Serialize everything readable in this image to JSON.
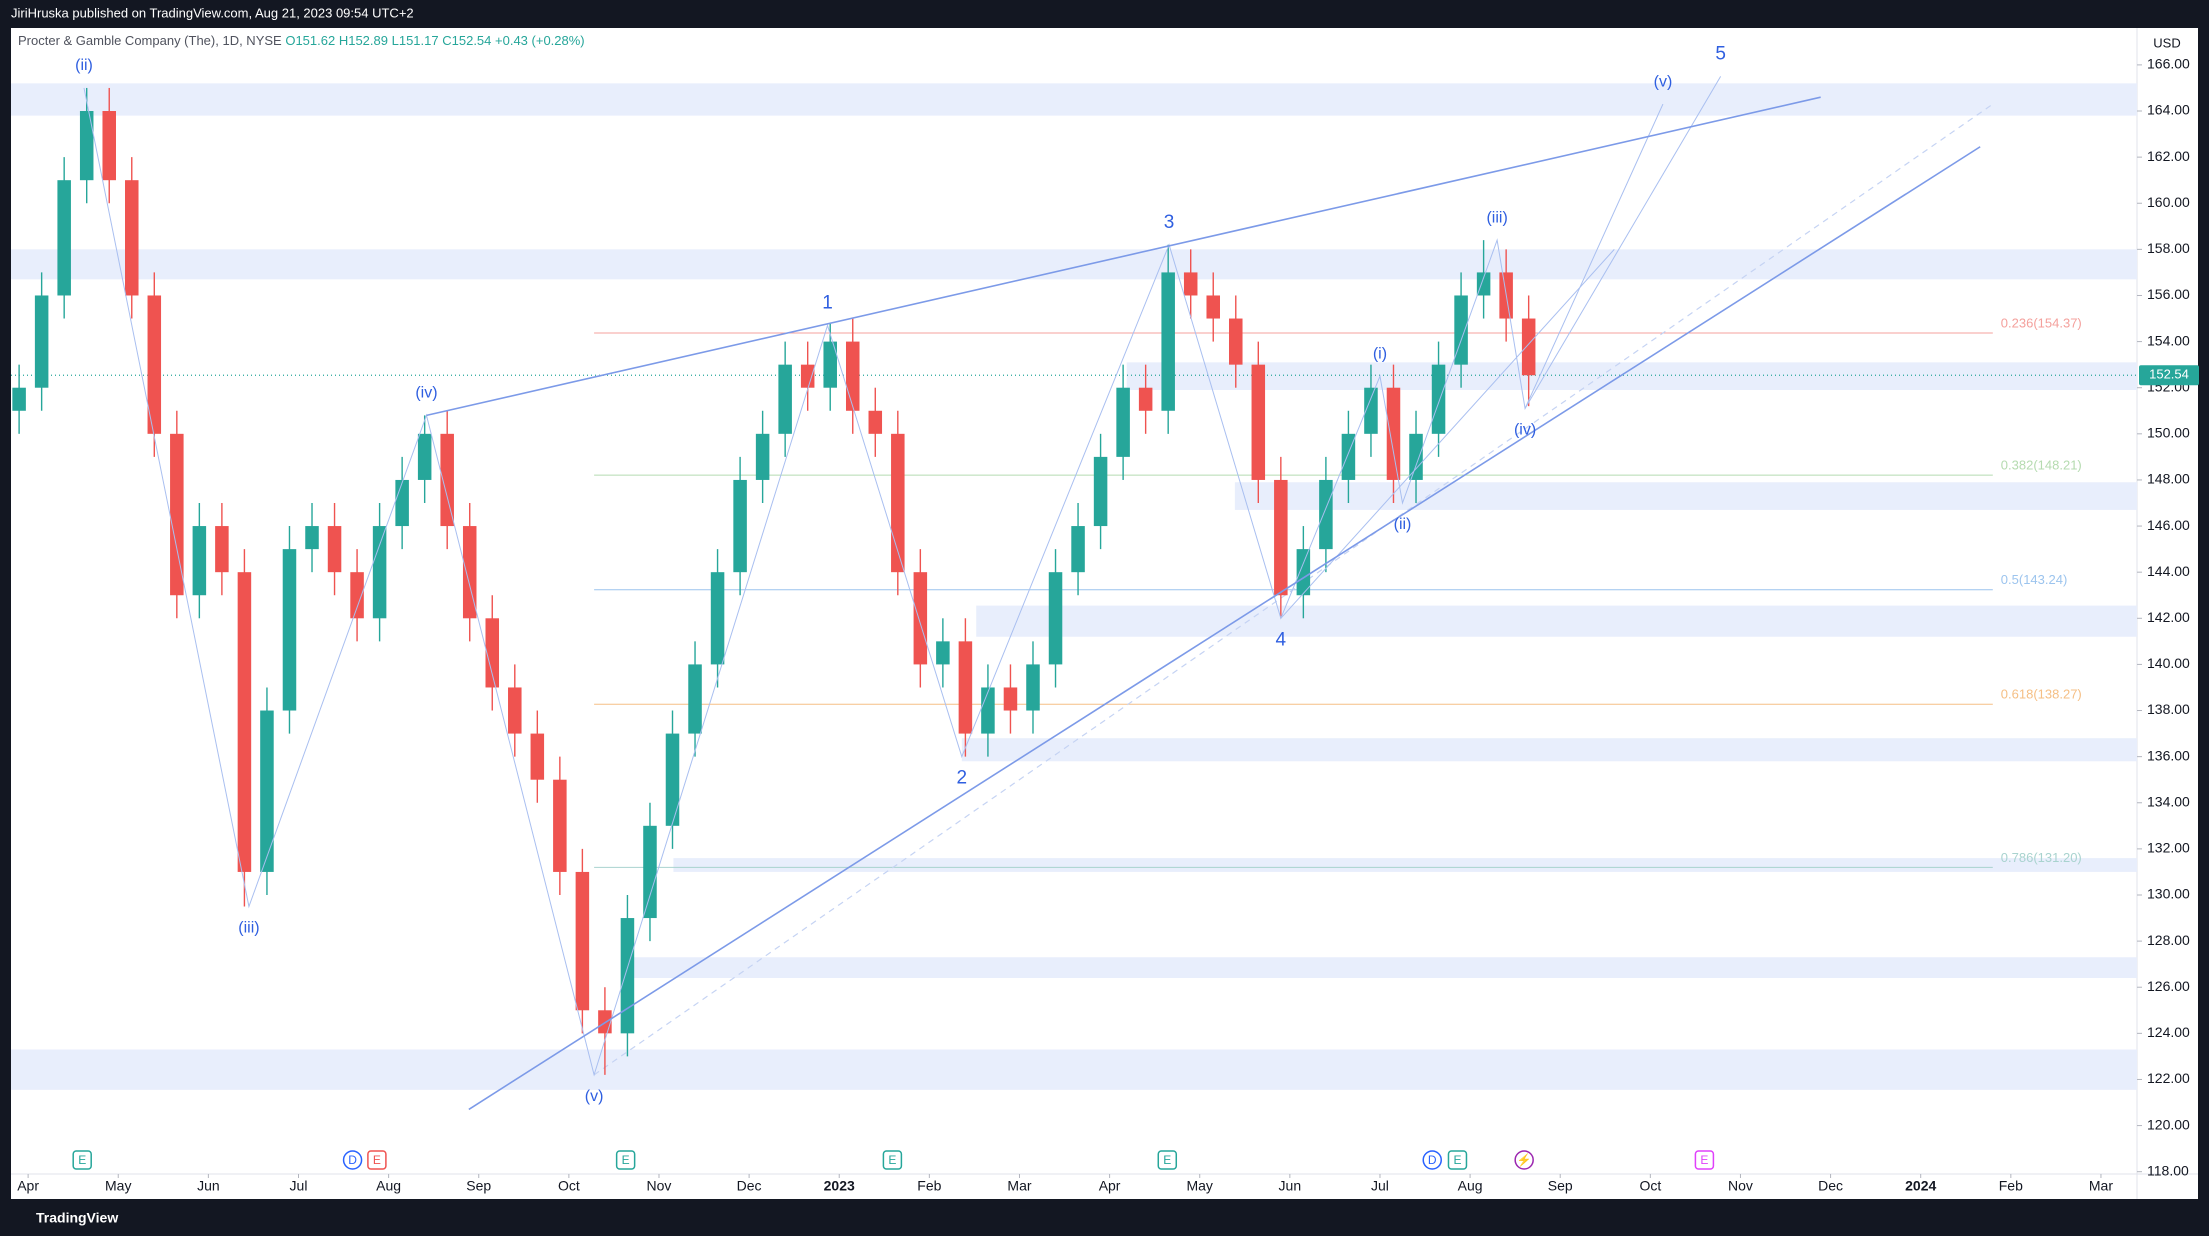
{
  "header": "JiriHruska published on TradingView.com, Aug 21, 2023 09:54 UTC+2",
  "footer": "TradingView",
  "chart_data": {
    "type": "candlestick",
    "symbol": "Procter & Gamble Company (The), 1D, NYSE",
    "ohlc_labels": [
      "O151.62",
      "H152.89",
      "L151.17",
      "C152.54",
      "+0.43 (+0.28%)"
    ],
    "currency": "USD",
    "last_price": 152.54,
    "up_color": "#26a69a",
    "down_color": "#ef5350",
    "xlim": [
      -0.19,
      23.4
    ],
    "xticks": [
      {
        "value": 0,
        "label": "Apr"
      },
      {
        "value": 1,
        "label": "May"
      },
      {
        "value": 2,
        "label": "Jun"
      },
      {
        "value": 3,
        "label": "Jul"
      },
      {
        "value": 4,
        "label": "Aug"
      },
      {
        "value": 5,
        "label": "Sep"
      },
      {
        "value": 6,
        "label": "Oct"
      },
      {
        "value": 7,
        "label": "Nov"
      },
      {
        "value": 8,
        "label": "Dec"
      },
      {
        "value": 9,
        "label": "2023"
      },
      {
        "value": 10,
        "label": "Feb"
      },
      {
        "value": 11,
        "label": "Mar"
      },
      {
        "value": 12,
        "label": "Apr"
      },
      {
        "value": 13,
        "label": "May"
      },
      {
        "value": 14,
        "label": "Jun"
      },
      {
        "value": 15,
        "label": "Jul"
      },
      {
        "value": 16,
        "label": "Aug"
      },
      {
        "value": 17,
        "label": "Sep"
      },
      {
        "value": 18,
        "label": "Oct"
      },
      {
        "value": 19,
        "label": "Nov"
      },
      {
        "value": 20,
        "label": "Dec"
      },
      {
        "value": 21,
        "label": "2024"
      },
      {
        "value": 22,
        "label": "Feb"
      },
      {
        "value": 23,
        "label": "Mar"
      }
    ],
    "ylim": [
      117.9,
      167.6
    ],
    "yticks": [
      {
        "value": 118,
        "label": "118.00"
      },
      {
        "value": 120,
        "label": "120.00"
      },
      {
        "value": 122,
        "label": "122.00"
      },
      {
        "value": 124,
        "label": "124.00"
      },
      {
        "value": 126,
        "label": "126.00"
      },
      {
        "value": 128,
        "label": "128.00"
      },
      {
        "value": 130,
        "label": "130.00"
      },
      {
        "value": 132,
        "label": "132.00"
      },
      {
        "value": 134,
        "label": "134.00"
      },
      {
        "value": 136,
        "label": "136.00"
      },
      {
        "value": 138,
        "label": "138.00"
      },
      {
        "value": 140,
        "label": "140.00"
      },
      {
        "value": 142,
        "label": "142.00"
      },
      {
        "value": 144,
        "label": "144.00"
      },
      {
        "value": 146,
        "label": "146.00"
      },
      {
        "value": 148,
        "label": "148.00"
      },
      {
        "value": 150,
        "label": "150.00"
      },
      {
        "value": 152,
        "label": "152.00"
      },
      {
        "value": 154,
        "label": "154.00"
      },
      {
        "value": 156,
        "label": "156.00"
      },
      {
        "value": 158,
        "label": "158.00"
      },
      {
        "value": 160,
        "label": "160.00"
      },
      {
        "value": 162,
        "label": "162.00"
      },
      {
        "value": 164,
        "label": "164.00"
      },
      {
        "value": 166,
        "label": "166.00"
      }
    ],
    "grid": false,
    "x": [
      -0.1,
      0.15,
      0.4,
      0.65,
      0.9,
      1.15,
      1.4,
      1.65,
      1.9,
      2.15,
      2.4,
      2.65,
      2.9,
      3.15,
      3.4,
      3.65,
      3.9,
      4.15,
      4.4,
      4.65,
      4.9,
      5.15,
      5.4,
      5.65,
      5.9,
      6.15,
      6.4,
      6.65,
      6.9,
      7.15,
      7.4,
      7.65,
      7.9,
      8.15,
      8.4,
      8.65,
      8.9,
      9.15,
      9.4,
      9.65,
      9.9,
      10.15,
      10.4,
      10.65,
      10.9,
      11.15,
      11.4,
      11.65,
      11.9,
      12.15,
      12.4,
      12.65,
      12.9,
      13.15,
      13.4,
      13.65,
      13.9,
      14.15,
      14.4,
      14.65,
      14.9,
      15.15,
      15.4,
      15.65,
      15.9,
      16.15,
      16.4,
      16.65
    ],
    "open": [
      151,
      152,
      156,
      161,
      164,
      161,
      156,
      150,
      143,
      146,
      144,
      131,
      138,
      145,
      146,
      144,
      142,
      146,
      148,
      150,
      146,
      142,
      139,
      137,
      135,
      131,
      125,
      124,
      129,
      133,
      137,
      140,
      144,
      148,
      150,
      153,
      152,
      154,
      151,
      150,
      144,
      140,
      141,
      137,
      139,
      138,
      140,
      144,
      146,
      149,
      152,
      151,
      157,
      156,
      155,
      153,
      148,
      143,
      145,
      148,
      150,
      152,
      148,
      150,
      153,
      156,
      157,
      155
    ],
    "high": [
      153,
      157,
      162,
      165,
      165,
      162,
      157,
      151,
      147,
      147,
      145,
      139,
      146,
      147,
      147,
      145,
      147,
      149,
      150.8,
      151,
      147,
      143,
      140,
      138,
      136,
      132,
      126,
      130,
      134,
      138,
      141,
      145,
      149,
      151,
      154,
      154,
      154.8,
      155,
      152,
      151,
      145,
      142,
      142,
      140,
      140,
      141,
      145,
      147,
      150,
      153,
      153,
      158.2,
      158,
      157,
      156,
      154,
      149,
      146,
      149,
      151,
      153,
      153,
      151,
      154,
      157,
      158.4,
      158,
      156
    ],
    "low": [
      150,
      151,
      155,
      160,
      160,
      155,
      149,
      142,
      142,
      143,
      129.5,
      130,
      137,
      144,
      143,
      141,
      141,
      145,
      147,
      145,
      141,
      138,
      136,
      134,
      130,
      124,
      122.2,
      123,
      128,
      132,
      136,
      139,
      143,
      147,
      149,
      151,
      151,
      150,
      149,
      143,
      139,
      139,
      136,
      136,
      137,
      137,
      139,
      143,
      145,
      148,
      150,
      150,
      155,
      154,
      152,
      147,
      142,
      142,
      144,
      147,
      149,
      147,
      147,
      149,
      152,
      155,
      154,
      151.2
    ],
    "close": [
      152,
      156,
      161,
      164,
      161,
      156,
      150,
      143,
      146,
      144,
      131,
      138,
      145,
      146,
      144,
      142,
      146,
      148,
      150,
      146,
      142,
      139,
      137,
      135,
      131,
      125,
      124,
      129,
      133,
      137,
      140,
      144,
      148,
      150,
      153,
      152,
      154,
      151,
      150,
      144,
      140,
      141,
      137,
      139,
      138,
      140,
      144,
      146,
      149,
      152,
      151,
      157,
      156,
      155,
      153,
      148,
      143,
      145,
      148,
      150,
      152,
      148,
      150,
      153,
      156,
      157,
      155,
      152.54
    ],
    "zones": [
      {
        "x0": -0.19,
        "y0": 163.8,
        "y1": 165.2
      },
      {
        "x0": -0.19,
        "y0": 156.7,
        "y1": 158.0
      },
      {
        "x0": 12.19,
        "y0": 151.9,
        "y1": 153.1
      },
      {
        "x0": 13.39,
        "y0": 146.7,
        "y1": 147.9
      },
      {
        "x0": 10.52,
        "y0": 141.2,
        "y1": 142.55
      },
      {
        "x0": 10.36,
        "y0": 135.8,
        "y1": 136.8
      },
      {
        "x0": 7.16,
        "y0": 131.0,
        "y1": 131.6
      },
      {
        "x0": 6.72,
        "y0": 126.4,
        "y1": 127.3
      },
      {
        "x0": -0.19,
        "y0": 121.55,
        "y1": 123.3
      }
    ],
    "fib_levels": [
      {
        "label": "0.236(154.37)",
        "value": 154.37,
        "color": "#f4a09c"
      },
      {
        "label": "0.382(148.21)",
        "value": 148.21,
        "color": "#b5dbb0"
      },
      {
        "label": "0.5(143.24)",
        "value": 143.24,
        "color": "#9cc4ee"
      },
      {
        "label": "0.618(138.27)",
        "value": 138.27,
        "color": "#f5bf85"
      },
      {
        "label": "0.786(131.20)",
        "value": 131.2,
        "color": "#a9d3cf"
      }
    ],
    "fib_x": [
      6.28,
      21.8
    ],
    "lines": [
      {
        "color": "#a9bff0",
        "width": 1,
        "points": [
          [
            0.62,
            165
          ],
          [
            2.45,
            129.5
          ],
          [
            4.42,
            150.8
          ],
          [
            6.28,
            122.2
          ],
          [
            8.87,
            154.7
          ],
          [
            10.36,
            136
          ],
          [
            12.66,
            158.2
          ],
          [
            13.9,
            142
          ],
          [
            15.0,
            152.5
          ],
          [
            15.25,
            147
          ],
          [
            16.3,
            158.4
          ],
          [
            16.61,
            151.1
          ],
          [
            18.14,
            164.3
          ]
        ]
      },
      {
        "color": "#a9bff0",
        "width": 1,
        "points": [
          [
            16.61,
            151.1
          ],
          [
            18.78,
            165.5
          ]
        ]
      },
      {
        "color": "#a9bff0",
        "width": 1,
        "points": [
          [
            13.9,
            142
          ],
          [
            17.6,
            158
          ]
        ]
      },
      {
        "color": "#7c9ae8",
        "width": 1.6,
        "points": [
          [
            4.42,
            150.8
          ],
          [
            19.89,
            164.6
          ]
        ]
      },
      {
        "color": "#7c9ae8",
        "width": 1.6,
        "points": [
          [
            4.89,
            120.7
          ],
          [
            21.66,
            162.45
          ]
        ]
      }
    ],
    "dashed_line": [
      [
        6.28,
        122.2
      ],
      [
        21.8,
        164.3
      ]
    ],
    "annotations": [
      {
        "text": "(ii)",
        "x": 0.62,
        "y": 165,
        "pos": "above"
      },
      {
        "text": "(iii)",
        "x": 2.45,
        "y": 129.5,
        "pos": "below"
      },
      {
        "text": "(iv)",
        "x": 4.42,
        "y": 150.8,
        "pos": "above"
      },
      {
        "text": "(v)",
        "x": 6.28,
        "y": 122.2,
        "pos": "below"
      },
      {
        "text": "1",
        "x": 8.87,
        "y": 154.7,
        "pos": "above"
      },
      {
        "text": "2",
        "x": 10.36,
        "y": 136,
        "pos": "below"
      },
      {
        "text": "3",
        "x": 12.66,
        "y": 158.2,
        "pos": "above"
      },
      {
        "text": "4",
        "x": 13.9,
        "y": 142,
        "pos": "below"
      },
      {
        "text": "(i)",
        "x": 15.0,
        "y": 152.5,
        "pos": "above"
      },
      {
        "text": "(ii)",
        "x": 15.25,
        "y": 147,
        "pos": "below"
      },
      {
        "text": "(iii)",
        "x": 16.3,
        "y": 158.4,
        "pos": "above"
      },
      {
        "text": "(iv)",
        "x": 16.61,
        "y": 151.1,
        "pos": "below"
      },
      {
        "text": "(v)",
        "x": 18.14,
        "y": 164.3,
        "pos": "above"
      },
      {
        "text": "5",
        "x": 18.78,
        "y": 165.5,
        "pos": "above"
      }
    ],
    "events": [
      {
        "label": "E",
        "x": 0.6,
        "color": "#26a69a"
      },
      {
        "label": "D",
        "x": 3.6,
        "color": "#2962ff"
      },
      {
        "label": "E",
        "x": 3.87,
        "color": "#ef5350"
      },
      {
        "label": "E",
        "x": 6.63,
        "color": "#26a69a"
      },
      {
        "label": "E",
        "x": 9.59,
        "color": "#26a69a"
      },
      {
        "label": "E",
        "x": 12.64,
        "color": "#26a69a"
      },
      {
        "label": "D",
        "x": 15.58,
        "color": "#2962ff"
      },
      {
        "label": "E",
        "x": 15.86,
        "color": "#26a69a"
      },
      {
        "label": "⚡",
        "x": 16.6,
        "color": "#9c27b0"
      },
      {
        "label": "E",
        "x": 18.6,
        "color": "#e040fb"
      }
    ]
  }
}
